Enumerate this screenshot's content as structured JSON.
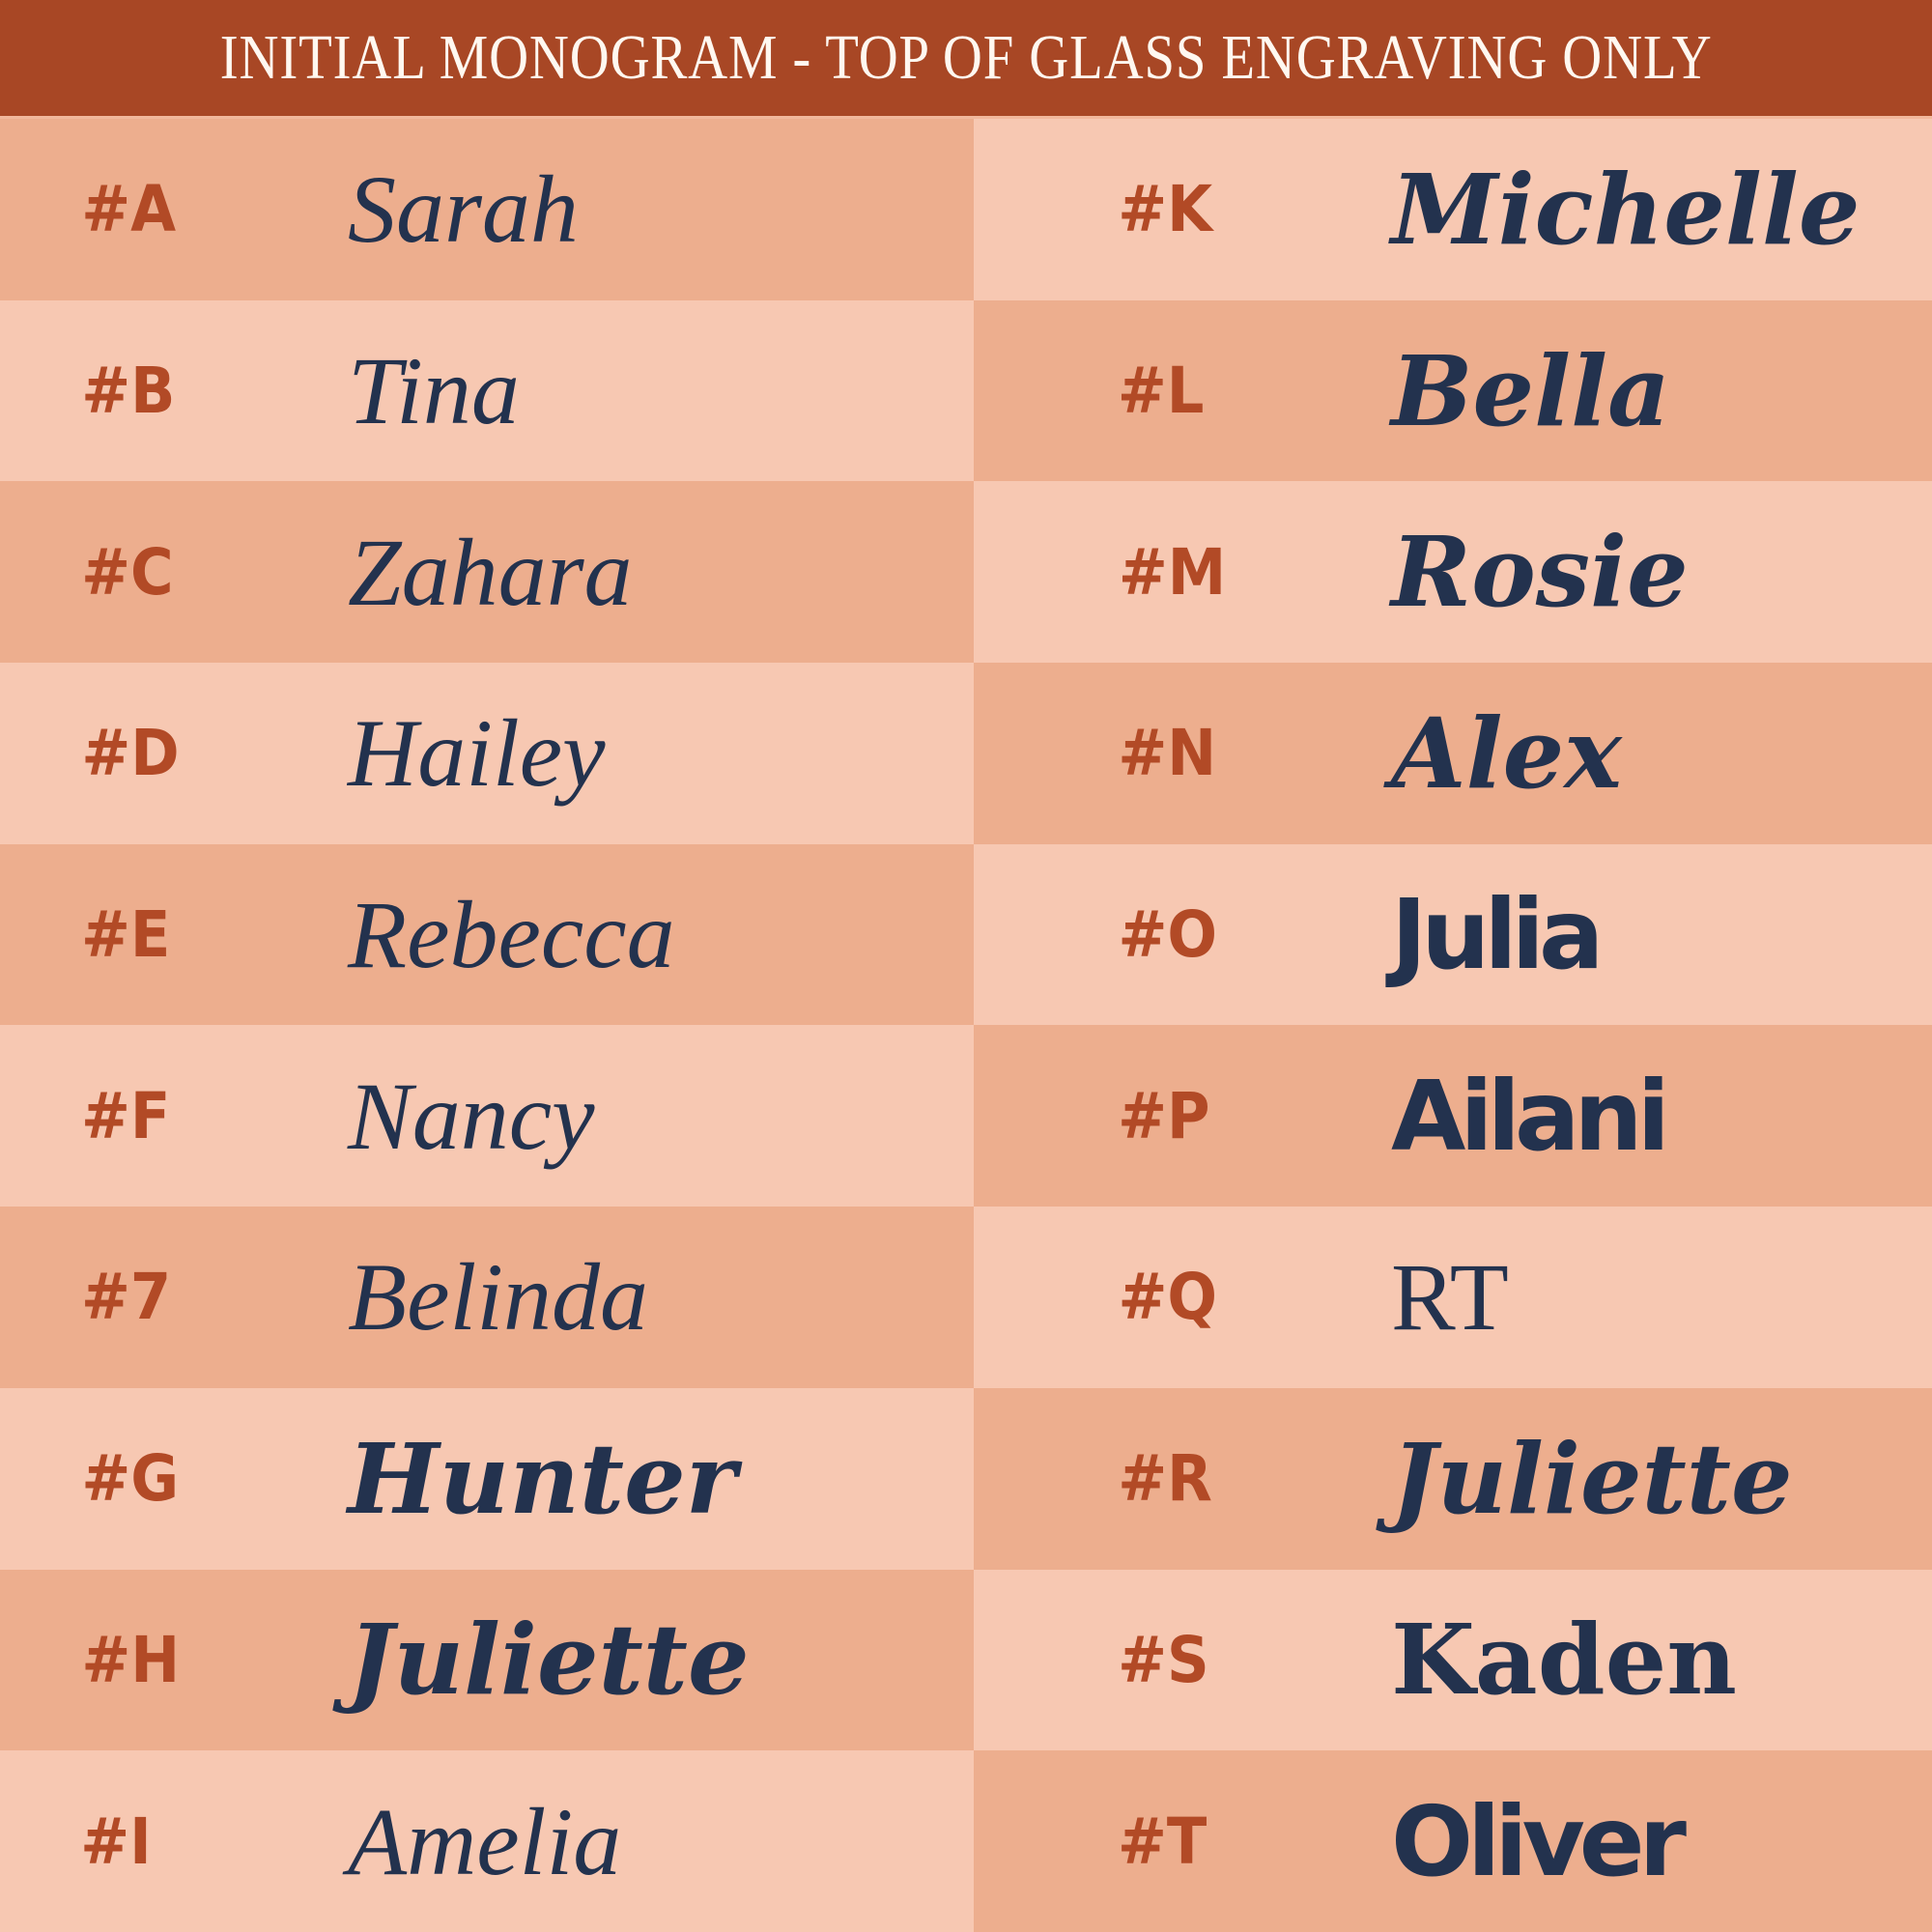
{
  "title": "INITIAL MONOGRAM - TOP OF GLASS ENGRAVING ONLY",
  "colors": {
    "header": "#a84725",
    "row_dark": "#edae8e",
    "row_light": "#f7c8b2",
    "code_text": "#b24a26",
    "name_text": "#23324e"
  },
  "left": [
    {
      "code": "#A",
      "name": "Sarah"
    },
    {
      "code": "#B",
      "name": "Tina"
    },
    {
      "code": "#C",
      "name": "Zahara"
    },
    {
      "code": "#D",
      "name": "Hailey"
    },
    {
      "code": "#E",
      "name": "Rebecca"
    },
    {
      "code": "#F",
      "name": "Nancy"
    },
    {
      "code": "#7",
      "name": "Belinda"
    },
    {
      "code": "#G",
      "name": "Hunter"
    },
    {
      "code": "#H",
      "name": "Juliette"
    },
    {
      "code": "#I",
      "name": "Amelia"
    }
  ],
  "right": [
    {
      "code": "#K",
      "name": "Michelle"
    },
    {
      "code": "#L",
      "name": "Bella"
    },
    {
      "code": "#M",
      "name": "Rosie"
    },
    {
      "code": "#N",
      "name": "Alex"
    },
    {
      "code": "#O",
      "name": "Julia"
    },
    {
      "code": "#P",
      "name": "Ailani"
    },
    {
      "code": "#Q",
      "name": "RT"
    },
    {
      "code": "#R",
      "name": "Juliette"
    },
    {
      "code": "#S",
      "name": "Kaden"
    },
    {
      "code": "#T",
      "name": "Oliver"
    }
  ]
}
